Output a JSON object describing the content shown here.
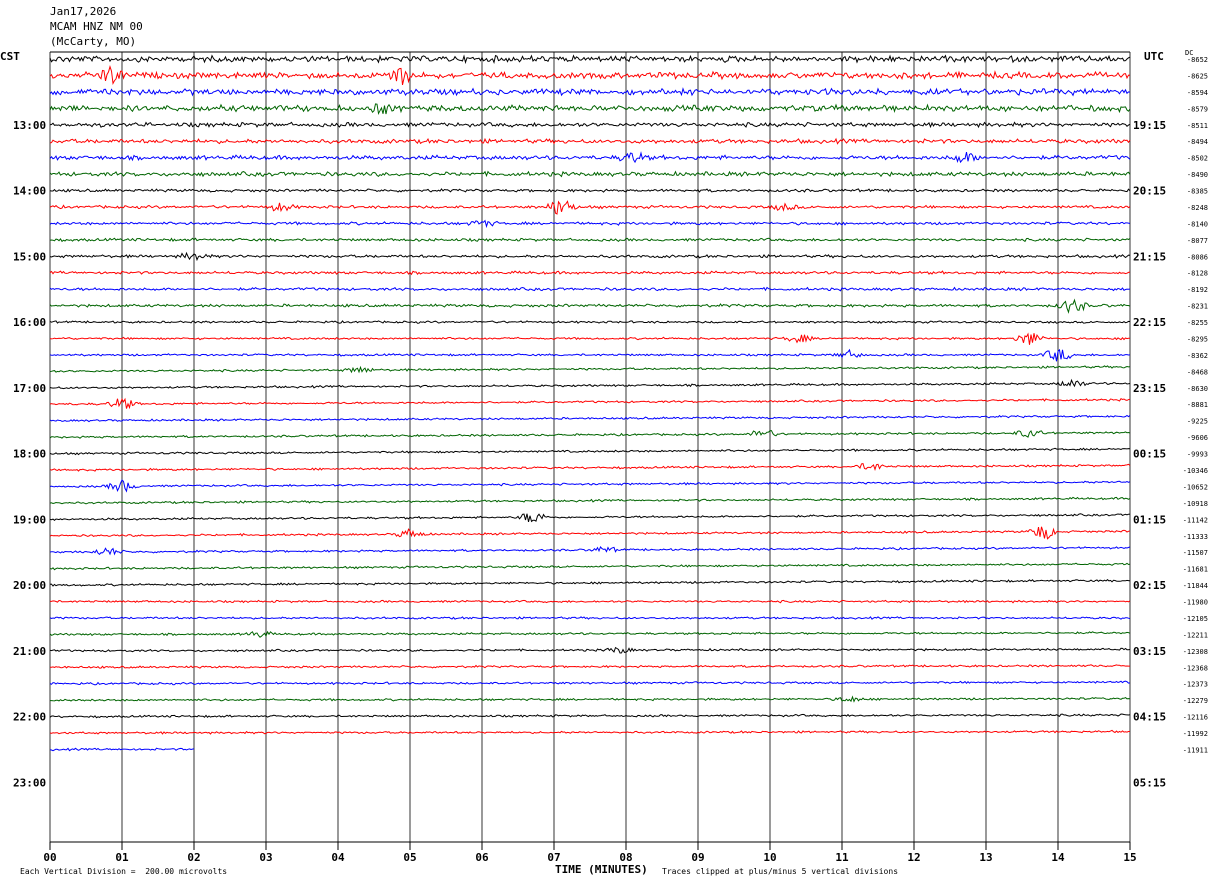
{
  "header": {
    "date": "Jan17,2026",
    "station": "MCAM HNZ NM 00",
    "location": "(McCarty, MO)"
  },
  "labels": {
    "left_zone": "CST",
    "right_zone": "UTC",
    "dc": "DC",
    "x_title": "TIME (MINUTES)",
    "scale_note": "Each Vertical Division =  200.00 microvolts",
    "clip_note": "Traces clipped at plus/minus 5 vertical divisions"
  },
  "colors": {
    "trace_cycle": [
      "#000000",
      "#ff0000",
      "#0000ff",
      "#006400"
    ],
    "grid": "#000000"
  },
  "chart_data": {
    "type": "line",
    "title": "MCAM HNZ NM 00 (McCarty, MO) Jan17,2026",
    "xlabel": "TIME (MINUTES)",
    "x_ticks": [
      "00",
      "01",
      "02",
      "03",
      "04",
      "05",
      "06",
      "07",
      "08",
      "09",
      "10",
      "11",
      "12",
      "13",
      "14",
      "15"
    ],
    "xlim": [
      0,
      15
    ],
    "row_minutes": 15,
    "left_hour_labels": [
      "13:00",
      "14:00",
      "15:00",
      "16:00",
      "17:00",
      "18:00",
      "19:00",
      "20:00",
      "21:00",
      "22:00",
      "23:00"
    ],
    "right_hour_labels": [
      "19:15",
      "20:15",
      "21:15",
      "22:15",
      "23:15",
      "00:15",
      "01:15",
      "02:15",
      "03:15",
      "04:15",
      "05:15"
    ],
    "dc_offsets": [
      "-8652",
      "-8625",
      "-8594",
      "-8579",
      "-8511",
      "-8494",
      "-8502",
      "-8490",
      "-8385",
      "-8248",
      "-8140",
      "-8077",
      "-8086",
      "-8128",
      "-8192",
      "-8231",
      "-8255",
      "-8295",
      "-8362",
      "-8468",
      "-8630",
      "-8881",
      "-9225",
      "-9606",
      "-9993",
      "-10346",
      "-10652",
      "-10918",
      "-11142",
      "-11333",
      "-11507",
      "-11681",
      "-11844",
      "-11980",
      "-12105",
      "-12211",
      "-12308",
      "-12368",
      "-12373",
      "-12279",
      "-12116",
      "-11992",
      "-11911"
    ],
    "last_trace_end_minute": 2.0,
    "events": [
      {
        "row": 1,
        "minute": 0.85,
        "amp": 8
      },
      {
        "row": 1,
        "minute": 4.85,
        "amp": 9
      },
      {
        "row": 3,
        "minute": 4.6,
        "amp": 4
      },
      {
        "row": 6,
        "minute": 8.1,
        "amp": 5
      },
      {
        "row": 6,
        "minute": 12.7,
        "amp": 5
      },
      {
        "row": 9,
        "minute": 3.2,
        "amp": 4
      },
      {
        "row": 9,
        "minute": 7.1,
        "amp": 9
      },
      {
        "row": 9,
        "minute": 10.2,
        "amp": 3
      },
      {
        "row": 10,
        "minute": 6.0,
        "amp": 3
      },
      {
        "row": 12,
        "minute": 2.0,
        "amp": 4
      },
      {
        "row": 15,
        "minute": 14.2,
        "amp": 7
      },
      {
        "row": 17,
        "minute": 10.4,
        "amp": 4
      },
      {
        "row": 17,
        "minute": 13.6,
        "amp": 7
      },
      {
        "row": 18,
        "minute": 11.1,
        "amp": 4
      },
      {
        "row": 18,
        "minute": 14.0,
        "amp": 7
      },
      {
        "row": 19,
        "minute": 4.3,
        "amp": 3
      },
      {
        "row": 20,
        "minute": 14.2,
        "amp": 4
      },
      {
        "row": 21,
        "minute": 1.0,
        "amp": 6
      },
      {
        "row": 23,
        "minute": 9.9,
        "amp": 5
      },
      {
        "row": 23,
        "minute": 13.6,
        "amp": 4
      },
      {
        "row": 26,
        "minute": 1.0,
        "amp": 6
      },
      {
        "row": 25,
        "minute": 11.4,
        "amp": 4
      },
      {
        "row": 28,
        "minute": 6.7,
        "amp": 6
      },
      {
        "row": 29,
        "minute": 5.0,
        "amp": 5
      },
      {
        "row": 29,
        "minute": 13.8,
        "amp": 8
      },
      {
        "row": 30,
        "minute": 0.8,
        "amp": 4
      },
      {
        "row": 30,
        "minute": 7.7,
        "amp": 3
      },
      {
        "row": 35,
        "minute": 2.9,
        "amp": 3
      },
      {
        "row": 36,
        "minute": 7.9,
        "amp": 3
      },
      {
        "row": 39,
        "minute": 11.1,
        "amp": 3
      }
    ]
  }
}
